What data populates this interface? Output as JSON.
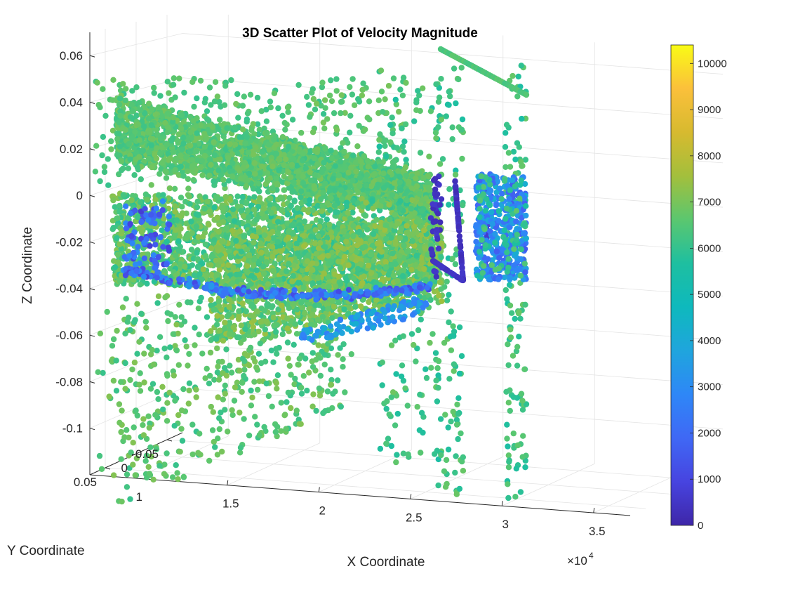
{
  "chart_data": {
    "type": "scatter",
    "subtype": "3d-scatter",
    "title": "3D Scatter Plot of Velocity Magnitude",
    "xlabel": "X Coordinate",
    "ylabel": "Y Coordinate",
    "zlabel": "Z Coordinate",
    "x_exponent_label": "×10",
    "x_exponent_power": "4",
    "x_ticks": [
      "1",
      "1.5",
      "2",
      "2.5",
      "3",
      "3.5"
    ],
    "y_ticks": [
      "0.05",
      "0",
      "-0.05"
    ],
    "z_ticks": [
      "0.06",
      "0.04",
      "0.02",
      "0",
      "-0.02",
      "-0.04",
      "-0.06",
      "-0.08",
      "-0.1"
    ],
    "xlim": [
      7500,
      37000
    ],
    "ylim": [
      -0.075,
      0.075
    ],
    "zlim": [
      -0.12,
      0.07
    ],
    "grid": true,
    "colormap": "parula",
    "colorbar": {
      "min": 0,
      "max": 10400,
      "ticks": [
        "0",
        "1000",
        "2000",
        "3000",
        "4000",
        "5000",
        "6000",
        "7000",
        "8000",
        "9000",
        "10000"
      ],
      "colors": [
        "#3e26a8",
        "#4744e0",
        "#3f68f5",
        "#2e87f7",
        "#1fa5dd",
        "#0eb9bd",
        "#1ebfa0",
        "#5bc76f",
        "#a3bf3c",
        "#d7ba2f",
        "#fbc03b",
        "#f9fb15"
      ]
    }
  }
}
